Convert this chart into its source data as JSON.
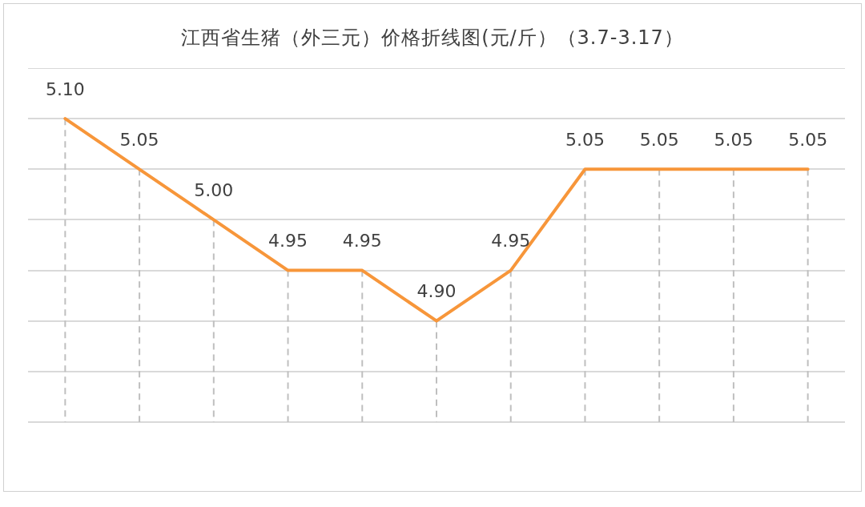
{
  "chart_data": {
    "type": "line",
    "title": "江西省生猪（外三元）价格折线图(元/斤）（3.7-3.17）",
    "categories": [
      null,
      null,
      null,
      null,
      null,
      null,
      null,
      null,
      null,
      null,
      null
    ],
    "series": [
      {
        "values": [
          5.1,
          5.05,
          5.0,
          4.95,
          4.95,
          4.9,
          4.95,
          5.05,
          5.05,
          5.05,
          5.05
        ],
        "color": "#f7963a",
        "value_labels": [
          "5.10",
          "5.05",
          "5.00",
          "4.95",
          "4.95",
          "4.90",
          "4.95",
          "5.05",
          "5.05",
          "5.05",
          "5.05"
        ]
      }
    ],
    "ylim": [
      4.8,
      5.15
    ],
    "yticks": [
      4.8,
      4.85,
      4.9,
      4.95,
      5.0,
      5.05,
      5.1,
      5.15
    ],
    "tick_labels": false,
    "grid": true,
    "legend": false,
    "marker": "none",
    "line_style": "solid"
  }
}
